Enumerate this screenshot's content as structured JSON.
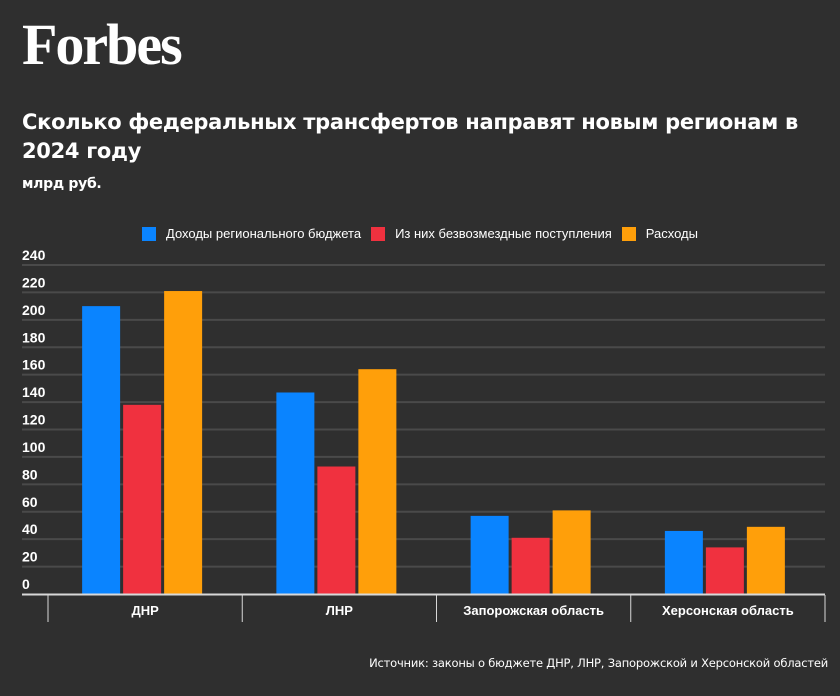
{
  "brand": {
    "logo_text": "Forbes"
  },
  "header": {
    "title": "Сколько федеральных трансфертов направят новым регионам в 2024 году",
    "subtitle": "млрд руб."
  },
  "footer": {
    "source": "Источник: законы о бюджете ДНР, ЛНР, Запорожской и Херсонской областей"
  },
  "colors": {
    "background": "#2f2f2f",
    "gridline": "#4a4a4a",
    "axis": "#d8d8d8"
  },
  "chart_data": {
    "type": "bar",
    "title": "Сколько федеральных трансфертов направят новым регионам в 2024 году",
    "subtitle": "млрд руб.",
    "xlabel": "",
    "ylabel": "млрд руб.",
    "categories": [
      "ДНР",
      "ЛНР",
      "Запорожская область",
      "Херсонская область"
    ],
    "series": [
      {
        "name": "Доходы регионального бюджета",
        "color": "#0a84ff",
        "values": [
          210,
          147,
          57,
          46
        ]
      },
      {
        "name": "Из них безвозмездные поступления",
        "color": "#f0313f",
        "values": [
          138,
          93,
          41,
          34
        ]
      },
      {
        "name": "Расходы",
        "color": "#ff9f0a",
        "values": [
          221,
          164,
          61,
          49
        ]
      }
    ],
    "ylim": [
      0,
      240
    ],
    "yticks": [
      0,
      20,
      40,
      60,
      80,
      100,
      120,
      140,
      160,
      180,
      200,
      220,
      240
    ],
    "grid": true,
    "legend_position": "top-center"
  }
}
